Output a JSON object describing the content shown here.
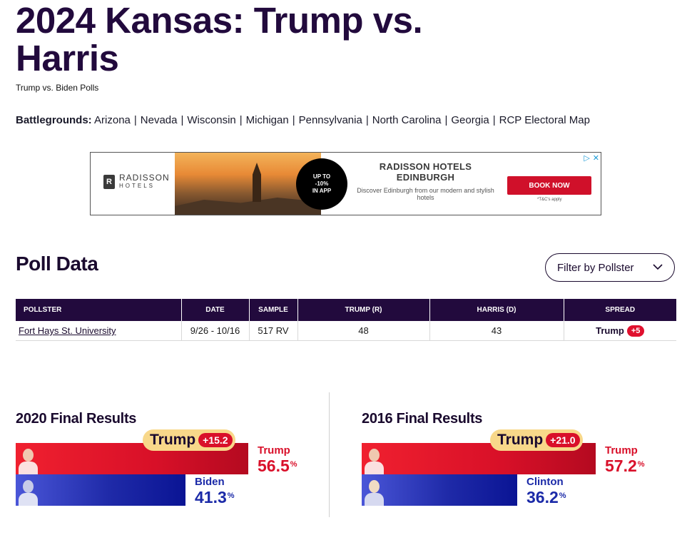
{
  "page": {
    "title": "2024 Kansas: Trump vs. Harris",
    "subtitle": "Trump vs. Biden Polls"
  },
  "battlegrounds": {
    "label": "Battlegrounds:",
    "links": [
      "Arizona",
      "Nevada",
      "Wisconsin",
      "Michigan",
      "Pennsylvania",
      "North Carolina",
      "Georgia",
      "RCP Electoral Map"
    ]
  },
  "ad": {
    "logo_name": "RADISSON",
    "logo_sub": "HOTELS",
    "logo_mark": "R",
    "badge_line1": "UP TO",
    "badge_line2": "-10%",
    "badge_line3": "IN APP",
    "headline_1": "RADISSON HOTELS",
    "headline_2": "EDINBURGH",
    "body": "Discover Edinburgh from our modern and stylish hotels",
    "cta": "BOOK NOW",
    "terms": "*T&C's apply"
  },
  "poll": {
    "title": "Poll Data",
    "filter_label": "Filter by Pollster",
    "columns": [
      "POLLSTER",
      "DATE",
      "SAMPLE",
      "TRUMP (R)",
      "HARRIS (D)",
      "SPREAD"
    ],
    "rows": [
      {
        "pollster": "Fort Hays St. University",
        "date": "9/26 - 10/16",
        "sample": "517 RV",
        "trump": "48",
        "harris": "43",
        "spread_leader": "Trump",
        "spread_value": "+5"
      }
    ]
  },
  "results": [
    {
      "title": "2020 Final Results",
      "winner": "Trump",
      "margin": "+15.2",
      "rep_name": "Trump",
      "rep_value": "56.5",
      "dem_name": "Biden",
      "dem_value": "41.3",
      "pct": "%"
    },
    {
      "title": "2016 Final Results",
      "winner": "Trump",
      "margin": "+21.0",
      "rep_name": "Trump",
      "rep_value": "57.2",
      "dem_name": "Clinton",
      "dem_value": "36.2",
      "pct": "%"
    }
  ],
  "colors": {
    "header_bg": "#220a3d",
    "republican": "#d9102a",
    "democrat": "#1b2aa8",
    "badge_bg": "#f8d88a"
  }
}
